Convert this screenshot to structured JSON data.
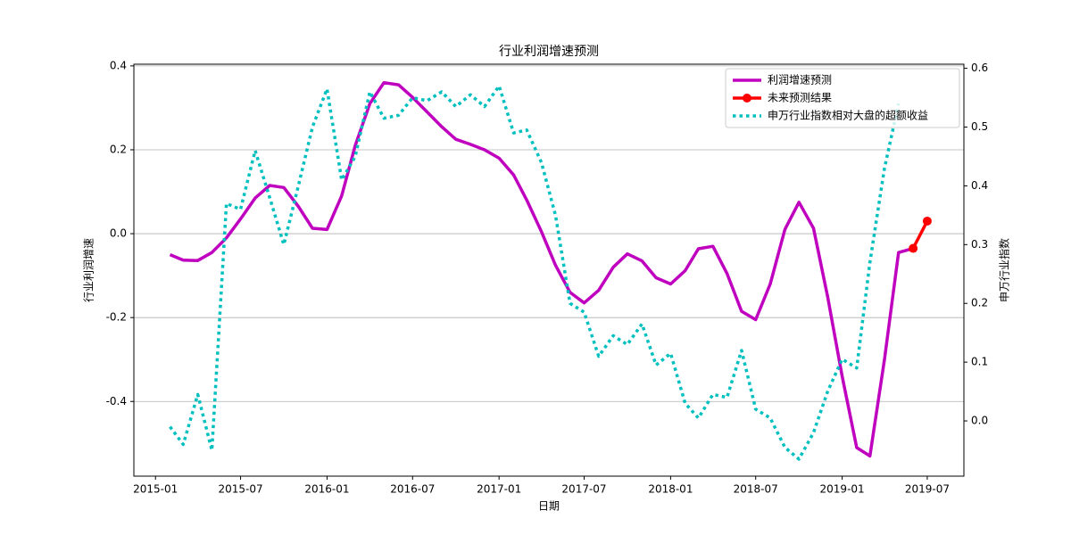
{
  "chart_data": {
    "type": "line",
    "title": "行业利润增速预测",
    "xlabel": "日期",
    "ylabel": "行业利润增速",
    "y2label": "申万行业指数",
    "x": [
      "2015-02",
      "2015-03",
      "2015-04",
      "2015-05",
      "2015-06",
      "2015-07",
      "2015-08",
      "2015-09",
      "2015-10",
      "2015-11",
      "2015-12",
      "2016-01",
      "2016-02",
      "2016-03",
      "2016-04",
      "2016-05",
      "2016-06",
      "2016-07",
      "2016-08",
      "2016-09",
      "2016-10",
      "2016-11",
      "2016-12",
      "2017-01",
      "2017-02",
      "2017-03",
      "2017-04",
      "2017-05",
      "2017-06",
      "2017-07",
      "2017-08",
      "2017-09",
      "2017-10",
      "2017-11",
      "2017-12",
      "2018-01",
      "2018-02",
      "2018-03",
      "2018-04",
      "2018-05",
      "2018-06",
      "2018-07",
      "2018-08",
      "2018-09",
      "2018-10",
      "2018-11",
      "2018-12",
      "2019-01",
      "2019-02",
      "2019-03",
      "2019-04",
      "2019-05",
      "2019-06",
      "2019-07"
    ],
    "series": [
      {
        "name": "利润增速预测",
        "color": "#bf00bf",
        "style": "solid",
        "values": [
          -0.05,
          -0.063,
          -0.064,
          -0.045,
          -0.01,
          0.035,
          0.085,
          0.115,
          0.11,
          0.065,
          0.013,
          0.01,
          0.09,
          0.21,
          0.31,
          0.36,
          0.355,
          0.325,
          0.29,
          0.255,
          0.225,
          0.213,
          0.2,
          0.18,
          0.14,
          0.08,
          0.005,
          -0.075,
          -0.14,
          -0.165,
          -0.135,
          -0.08,
          -0.048,
          -0.065,
          -0.105,
          -0.12,
          -0.088,
          -0.036,
          -0.03,
          -0.095,
          -0.185,
          -0.205,
          -0.12,
          0.01,
          0.075,
          0.013,
          -0.15,
          -0.34,
          -0.51,
          -0.53,
          -0.3,
          -0.045,
          -0.035,
          null
        ]
      },
      {
        "name": "未来预测结果",
        "color": "#ff0000",
        "style": "solid",
        "marker": "o",
        "values": [
          null,
          null,
          null,
          null,
          null,
          null,
          null,
          null,
          null,
          null,
          null,
          null,
          null,
          null,
          null,
          null,
          null,
          null,
          null,
          null,
          null,
          null,
          null,
          null,
          null,
          null,
          null,
          null,
          null,
          null,
          null,
          null,
          null,
          null,
          null,
          null,
          null,
          null,
          null,
          null,
          null,
          null,
          null,
          null,
          null,
          null,
          null,
          null,
          null,
          null,
          null,
          null,
          -0.035,
          0.03
        ]
      },
      {
        "name": "申万行业指数相对大盘的超额收益",
        "color": "#00bfbf",
        "style": "dotted",
        "axis": "y2",
        "values": [
          -0.01,
          -0.04,
          0.045,
          -0.05,
          0.37,
          0.36,
          0.46,
          0.38,
          0.3,
          0.4,
          0.5,
          0.565,
          0.41,
          0.45,
          0.56,
          0.515,
          0.52,
          0.55,
          0.545,
          0.56,
          0.535,
          0.555,
          0.535,
          0.57,
          0.49,
          0.495,
          0.44,
          0.35,
          0.2,
          0.185,
          0.11,
          0.145,
          0.13,
          0.165,
          0.095,
          0.115,
          0.03,
          0.005,
          0.045,
          0.04,
          0.12,
          0.02,
          0.005,
          -0.045,
          -0.065,
          -0.02,
          0.05,
          0.105,
          0.09,
          0.27,
          0.43,
          0.54,
          null,
          null
        ]
      }
    ],
    "xlim": [
      "2014-11-16",
      "2019-09-17"
    ],
    "xticks": [
      "2015-01",
      "2015-07",
      "2016-01",
      "2016-07",
      "2017-01",
      "2017-07",
      "2018-01",
      "2018-07",
      "2019-01",
      "2019-07"
    ],
    "ylim": [
      -0.578,
      0.404
    ],
    "yticks": [
      -0.4,
      -0.2,
      {
        "value": 0,
        "label": "0.0"
      },
      0.2,
      0.4
    ],
    "y2lim": [
      -0.094,
      0.607
    ],
    "y2ticks": [
      {
        "value": 0,
        "label": "0.0"
      },
      0.1,
      0.2,
      0.3,
      0.4,
      0.5,
      0.6
    ],
    "grid": true,
    "legend": "upper right"
  }
}
